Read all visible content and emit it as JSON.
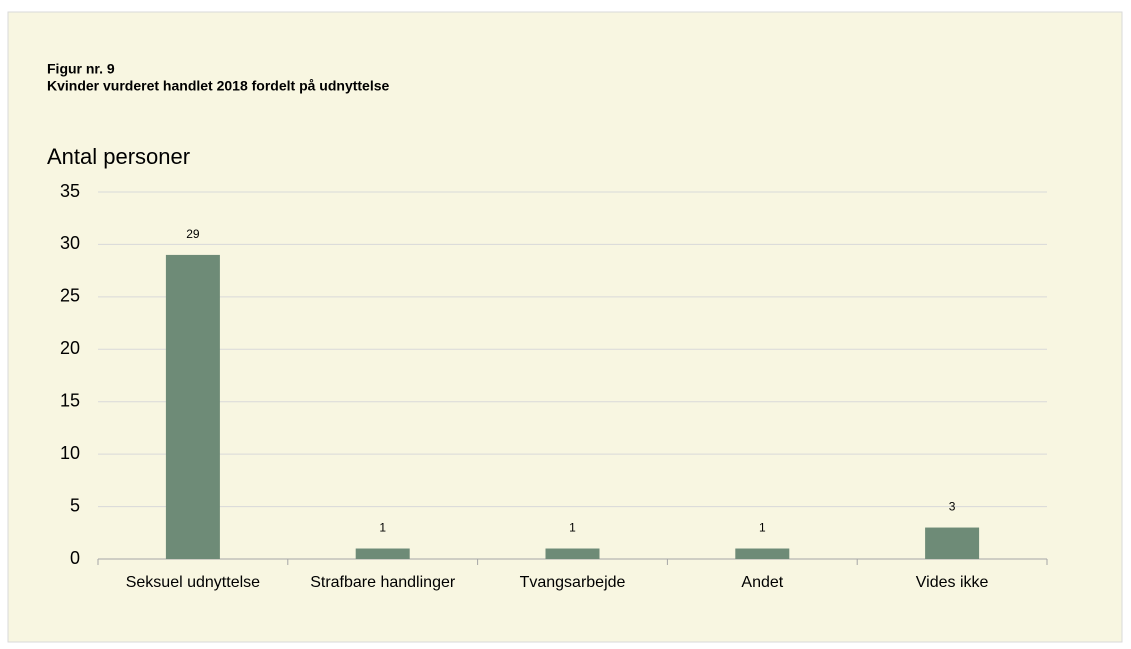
{
  "chart_data": {
    "type": "bar",
    "title": "Figur nr. 9",
    "subtitle": "Kvinder vurderet handlet 2018 fordelt på udnyttelse",
    "y_label": "Antal personer",
    "categories": [
      "Seksuel udnyttelse",
      "Strafbare handlinger",
      "Tvangsarbejde",
      "Andet",
      "Vides ikke"
    ],
    "values": [
      29,
      1,
      1,
      1,
      3
    ],
    "color": "#6e8b77",
    "ylim": [
      0,
      35
    ],
    "yticks": [
      0,
      5,
      10,
      15,
      20,
      25,
      30,
      35
    ],
    "grid": true
  }
}
